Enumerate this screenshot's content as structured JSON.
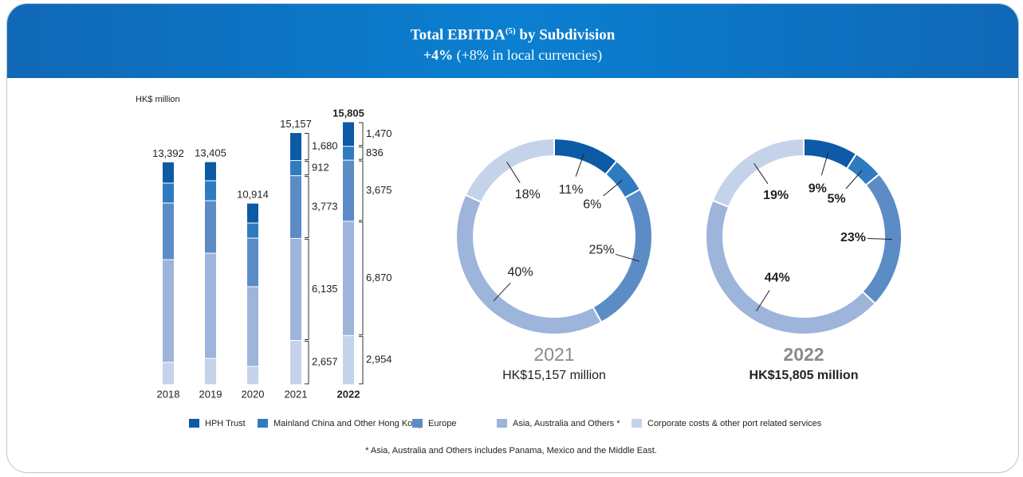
{
  "header": {
    "title": "Total EBITDA",
    "title_note": "(5)",
    "title_rest": "by Subdivision",
    "subtitle_bold": "+4%",
    "subtitle_rest": "(+8% in local currencies)"
  },
  "chart_data": [
    {
      "type": "bar",
      "stacked": true,
      "y_label": "HK$ million",
      "categories": [
        "2018",
        "2019",
        "2020",
        "2021",
        "2022"
      ],
      "totals": [
        13392,
        13405,
        10914,
        15157,
        15805
      ],
      "total_labels": [
        "13,392",
        "13,405",
        "10,914",
        "15,157",
        "15,805"
      ],
      "series": [
        {
          "name": "Corporate costs & other port related services",
          "color": "#c5d3ea",
          "values": [
            1340,
            1580,
            1100,
            2657,
            2954
          ],
          "value_labels": [
            null,
            null,
            null,
            "2,657",
            "2,954"
          ]
        },
        {
          "name": "Asia, Australia and Others *",
          "color": "#9db4db",
          "values": [
            6180,
            6320,
            4790,
            6135,
            6870
          ],
          "value_labels": [
            null,
            null,
            null,
            "6,135",
            "6,870"
          ]
        },
        {
          "name": "Europe",
          "color": "#5b8cc6",
          "values": [
            3400,
            3160,
            2920,
            3773,
            3675
          ],
          "value_labels": [
            null,
            null,
            null,
            "3,773",
            "3,675"
          ]
        },
        {
          "name": "Mainland China and Other Hong Kong",
          "color": "#2f7bc0",
          "values": [
            1200,
            1200,
            910,
            912,
            836
          ],
          "value_labels": [
            null,
            null,
            null,
            "912",
            "836"
          ]
        },
        {
          "name": "HPH Trust",
          "color": "#0d5aa7",
          "values": [
            1272,
            1145,
            1194,
            1680,
            1470
          ],
          "value_labels": [
            null,
            null,
            null,
            "1,680",
            "1,470"
          ]
        }
      ]
    },
    {
      "type": "pie",
      "donut": true,
      "title": "2021",
      "subtitle": "HK$15,157 million",
      "values": [
        11,
        6,
        25,
        40,
        18
      ],
      "value_labels": [
        "11%",
        "6%",
        "25%",
        "40%",
        "18%"
      ],
      "colors": [
        "#0d5aa7",
        "#2f7bc0",
        "#5b8cc6",
        "#9db4db",
        "#c5d3ea"
      ]
    },
    {
      "type": "pie",
      "donut": true,
      "title": "2022",
      "subtitle": "HK$15,805 million",
      "values": [
        9,
        5,
        23,
        44,
        19
      ],
      "value_labels": [
        "9%",
        "5%",
        "23%",
        "44%",
        "19%"
      ],
      "colors": [
        "#0d5aa7",
        "#2f7bc0",
        "#5b8cc6",
        "#9db4db",
        "#c5d3ea"
      ]
    }
  ],
  "footnote": "* Asia, Australia and Others includes Panama, Mexico and the Middle East."
}
